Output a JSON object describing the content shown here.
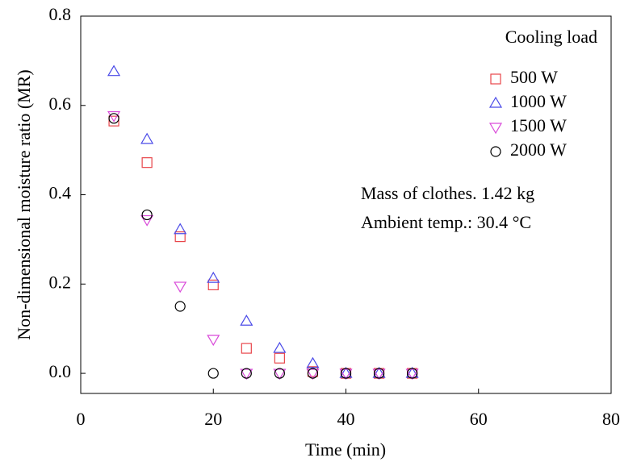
{
  "chart_data": {
    "type": "scatter",
    "xlabel": "Time (min)",
    "ylabel": "Non-dimensional moisture ratio (MR)",
    "legend_title": "Cooling load",
    "legend": "upper right",
    "annotations": [
      "Mass of clothes. 1.42 kg",
      "Ambient temp.: 30.4 °C"
    ],
    "x": [
      5,
      10,
      15,
      20,
      25,
      30,
      35,
      40,
      45,
      50
    ],
    "series": [
      {
        "name": "500 W",
        "color": "#e8454a",
        "marker": "square",
        "values": [
          0.565,
          0.472,
          0.306,
          0.198,
          0.056,
          0.034,
          0.004,
          0,
          0,
          0
        ]
      },
      {
        "name": "1000 W",
        "color": "#4a4ae8",
        "marker": "triangle-up",
        "values": [
          0.676,
          0.524,
          0.322,
          0.213,
          0.117,
          0.056,
          0.022,
          0,
          0,
          0
        ]
      },
      {
        "name": "1500 W",
        "color": "#d94ad9",
        "marker": "triangle-down",
        "values": [
          0.577,
          0.344,
          0.195,
          0.076,
          0,
          0,
          0,
          0,
          0,
          0
        ]
      },
      {
        "name": "2000 W",
        "color": "#000000",
        "marker": "circle",
        "values": [
          0.571,
          0.355,
          0.15,
          0,
          0,
          0,
          0,
          0,
          0,
          0
        ]
      }
    ],
    "xlim": [
      0,
      80
    ],
    "xticks": [
      0,
      20,
      40,
      60,
      80
    ],
    "ylim": [
      -0.045,
      0.8
    ],
    "yticks": [
      {
        "value": 0,
        "label": "0.0"
      },
      {
        "value": 0.2,
        "label": "0.2"
      },
      {
        "value": 0.4,
        "label": "0.4"
      },
      {
        "value": 0.6,
        "label": "0.6"
      },
      {
        "value": 0.8,
        "label": "0.8"
      }
    ]
  }
}
